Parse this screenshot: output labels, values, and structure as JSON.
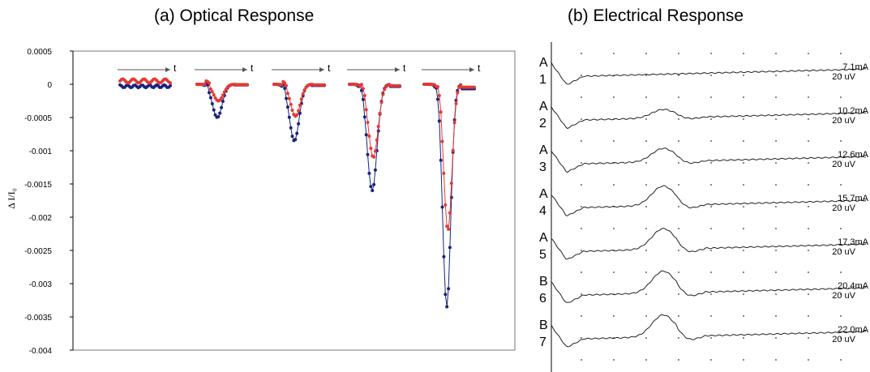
{
  "panel_a_title": "(a) Optical Response",
  "panel_b_title": "(b)  Electrical Response",
  "colors": {
    "series_blue": "#1a237e",
    "series_red": "#e53935",
    "axis": "#000000",
    "trace": "#222222"
  },
  "chart_data": [
    {
      "type": "line",
      "title": "(a) Optical Response",
      "ylabel": "Δ I/I₀",
      "xlabel": "",
      "ylim": [
        -0.004,
        0.0005
      ],
      "yticks": [
        "0.0005",
        "0",
        "-0.0005",
        "-0.001",
        "-0.0015",
        "-0.002",
        "-0.0025",
        "-0.003",
        "-0.0035",
        "-0.004"
      ],
      "time_arrow_label": "t",
      "grid": false,
      "series": [
        {
          "color": "blue",
          "peaks": [
            -3e-05,
            -0.0005,
            -0.00085,
            -0.0016,
            -0.00335
          ]
        },
        {
          "color": "red",
          "peaks": [
            5e-05,
            -0.00025,
            -0.00048,
            -0.0011,
            -0.0022
          ]
        }
      ]
    },
    {
      "type": "line",
      "title": "(b)  Electrical Response",
      "traces": [
        {
          "group": "A",
          "index": "1",
          "current": "7.1mA",
          "scale": "20 uV",
          "bump": 0.0
        },
        {
          "group": "A",
          "index": "2",
          "current": "10.2mA",
          "scale": "20 uV",
          "bump": 0.35
        },
        {
          "group": "A",
          "index": "3",
          "current": "12.6mA",
          "scale": "20 uV",
          "bump": 0.55
        },
        {
          "group": "A",
          "index": "4",
          "current": "15.7mA",
          "scale": "20 uV",
          "bump": 0.8
        },
        {
          "group": "A",
          "index": "5",
          "current": "17.3mA",
          "scale": "20 uV",
          "bump": 0.85
        },
        {
          "group": "B",
          "index": "6",
          "current": "20.4mA",
          "scale": "20 uV",
          "bump": 0.9
        },
        {
          "group": "B",
          "index": "7",
          "current": "22.0mA",
          "scale": "20 uV",
          "bump": 0.9
        }
      ]
    }
  ]
}
